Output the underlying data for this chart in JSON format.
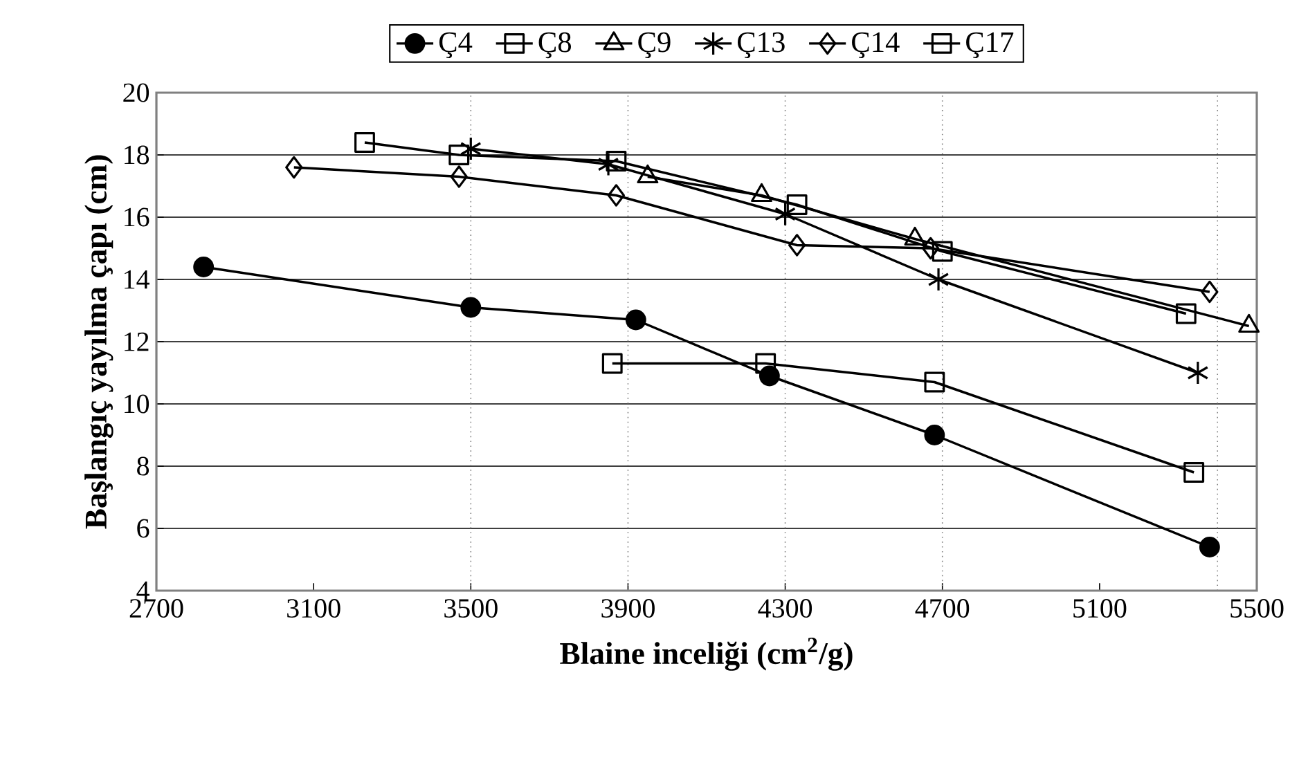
{
  "chart_data": {
    "type": "line",
    "xlabel": "Blaine inceliği (cm$^{2}$/g)",
    "ylabel": "Başlangıç yayılma çapı (cm)",
    "xlim": [
      2700,
      5500
    ],
    "xticks": [
      2700,
      3100,
      3500,
      3900,
      4300,
      4700,
      5100,
      5500
    ],
    "ylim": [
      4,
      20
    ],
    "yticks": [
      4,
      6,
      8,
      10,
      12,
      14,
      16,
      18,
      20
    ],
    "grid": "y",
    "legend": "top",
    "line_style": "solid",
    "ref_lines": [
      {
        "axis": "x",
        "value": 3500,
        "line_style": "dotted",
        "color": "#808080"
      },
      {
        "axis": "x",
        "value": 3900,
        "line_style": "dotted",
        "color": "#808080"
      },
      {
        "axis": "x",
        "value": 4300,
        "line_style": "dotted",
        "color": "#808080"
      },
      {
        "axis": "x",
        "value": 4700,
        "line_style": "dotted",
        "color": "#808080"
      },
      {
        "axis": "x",
        "value": 5400,
        "line_style": "dotted",
        "color": "#808080"
      }
    ],
    "series": [
      {
        "name": "Ç4",
        "color": "#000000",
        "marker": "circle",
        "x": [
          2820,
          3500,
          3920,
          4260,
          4680,
          5380
        ],
        "values": [
          14.4,
          13.1,
          12.7,
          10.9,
          9.0,
          5.4
        ]
      },
      {
        "name": "Ç8",
        "color": "#000000",
        "marker": "square",
        "x": [
          3860,
          4250,
          4680,
          5340
        ],
        "values": [
          11.3,
          11.3,
          10.7,
          7.8
        ]
      },
      {
        "name": "Ç9",
        "color": "#000000",
        "marker": "triangle",
        "x": [
          3950,
          4240,
          4630,
          5480
        ],
        "values": [
          17.3,
          16.7,
          15.3,
          12.5
        ]
      },
      {
        "name": "Ç13",
        "color": "#000000",
        "marker": "cross",
        "x": [
          3500,
          3850,
          4300,
          4690,
          5350
        ],
        "values": [
          18.2,
          17.7,
          16.1,
          14.0,
          11.0
        ]
      },
      {
        "name": "Ç14",
        "color": "#000000",
        "marker": "diamond",
        "x": [
          3050,
          3470,
          3870,
          4330,
          4670,
          5380
        ],
        "values": [
          17.6,
          17.3,
          16.7,
          15.1,
          15.0,
          13.6
        ]
      },
      {
        "name": "Ç17",
        "color": "#000000",
        "marker": "square",
        "x": [
          3230,
          3470,
          3870,
          4330,
          4700,
          5320
        ],
        "values": [
          18.4,
          18.0,
          17.8,
          16.4,
          14.9,
          12.9
        ]
      }
    ]
  }
}
